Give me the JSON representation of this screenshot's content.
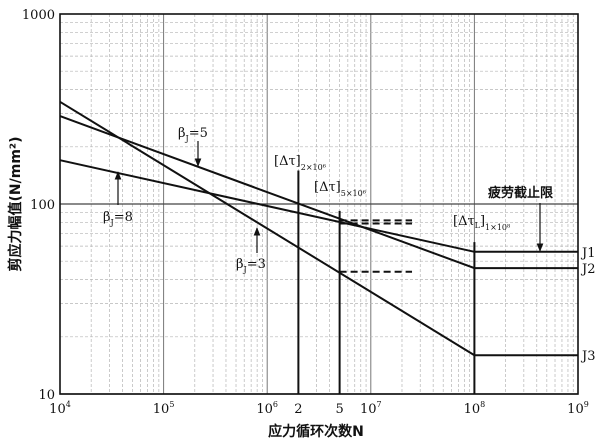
{
  "chart_data": {
    "type": "line",
    "xscale": "log",
    "yscale": "log",
    "xlim": [
      10000,
      1000000000
    ],
    "ylim": [
      10,
      1000
    ],
    "xlabel": "应力循环次数N",
    "ylabel": "剪应力幅值(N/mm²)",
    "grid": true,
    "x_tick_labels": [
      {
        "x": 10000,
        "base": "10",
        "exp": "4"
      },
      {
        "x": 100000,
        "base": "10",
        "exp": "5"
      },
      {
        "x": 1000000,
        "base": "10",
        "exp": "6"
      },
      {
        "x": 2000000,
        "base": "2",
        "exp": ""
      },
      {
        "x": 5000000,
        "base": "5",
        "exp": ""
      },
      {
        "x": 10000000,
        "base": "10",
        "exp": "7"
      },
      {
        "x": 100000000,
        "base": "10",
        "exp": "8"
      },
      {
        "x": 1000000000,
        "base": "10",
        "exp": "9"
      }
    ],
    "y_tick_labels": [
      {
        "y": 10,
        "text": "10"
      },
      {
        "y": 100,
        "text": "100"
      },
      {
        "y": 1000,
        "text": "1000"
      }
    ],
    "series": [
      {
        "name": "J1",
        "points": [
          [
            10000,
            170
          ],
          [
            100000000,
            56
          ],
          [
            1000000000,
            56
          ]
        ]
      },
      {
        "name": "J2",
        "points": [
          [
            10000,
            290
          ],
          [
            100000000,
            46
          ],
          [
            1000000000,
            46
          ]
        ]
      },
      {
        "name": "J3",
        "points": [
          [
            10000,
            345
          ],
          [
            100000000,
            16
          ],
          [
            1000000000,
            16
          ]
        ]
      }
    ],
    "vertical_lines": [
      {
        "x": 2000000,
        "y_top": 150
      },
      {
        "x": 5000000,
        "y_top": 92
      },
      {
        "x": 100000000,
        "y_top": 63
      }
    ],
    "dashed_segments": [
      {
        "x0": 5000000,
        "x1": 25000000,
        "y": 82
      },
      {
        "x0": 5000000,
        "x1": 25000000,
        "y": 79
      },
      {
        "x0": 5000000,
        "x1": 25000000,
        "y": 44
      }
    ],
    "annotations": {
      "beta5": {
        "base": "β",
        "sub": "J",
        "rest": "=5"
      },
      "beta8": {
        "base": "β",
        "sub": "J",
        "rest": "=8"
      },
      "beta3": {
        "base": "β",
        "sub": "J",
        "rest": "=3"
      },
      "dtau_2e6": {
        "main": "[Δτ]",
        "sub": "2×10⁶"
      },
      "dtau_5e6": {
        "main": "[Δτ]",
        "sub": "5×10⁶"
      },
      "dtau_L": {
        "main": "[Δτ",
        "main_sub": "L",
        "main_end": "]",
        "sub": "1×10⁸"
      },
      "fatigue_limit": "疲劳截止限"
    }
  }
}
